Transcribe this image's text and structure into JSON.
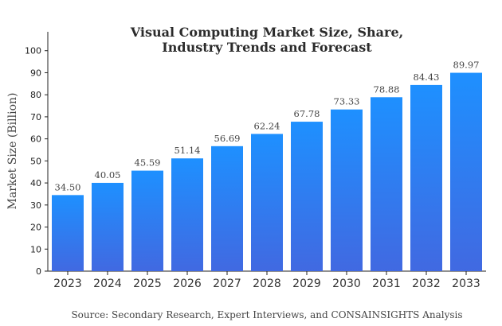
{
  "chart_data": {
    "type": "bar",
    "title_lines": [
      "Visual Computing Market Size, Share,",
      "Industry Trends and Forecast"
    ],
    "ylabel": "Market Size (Billion)",
    "xlabel": "",
    "categories": [
      "2023",
      "2024",
      "2025",
      "2026",
      "2027",
      "2028",
      "2029",
      "2030",
      "2031",
      "2032",
      "2033"
    ],
    "values": [
      34.5,
      40.05,
      45.59,
      51.14,
      56.69,
      62.24,
      67.78,
      73.33,
      78.88,
      84.43,
      89.97
    ],
    "value_labels": [
      "34.50",
      "40.05",
      "45.59",
      "51.14",
      "56.69",
      "62.24",
      "67.78",
      "73.33",
      "78.88",
      "84.43",
      "89.97"
    ],
    "yticks": [
      0,
      10,
      20,
      30,
      40,
      50,
      60,
      70,
      80,
      90,
      100
    ],
    "ylim": [
      0,
      110
    ],
    "grid": false,
    "bar_color_top": "#1e90ff",
    "bar_color_bottom": "#4169e1"
  },
  "source_note": "Source: Secondary Research, Expert Interviews, and CONSAINSIGHTS Analysis"
}
